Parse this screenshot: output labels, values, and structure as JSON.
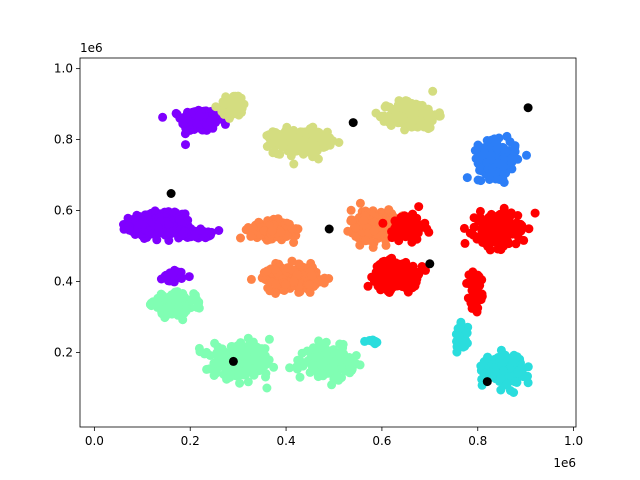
{
  "chart_data": {
    "type": "scatter",
    "title": "",
    "xlabel": "",
    "ylabel": "",
    "x_offset_label": "1e6",
    "y_offset_label": "1e6",
    "xlim": [
      -30000,
      1005000
    ],
    "ylim": [
      -10000,
      1030000
    ],
    "x_ticks": [
      0.0,
      0.2,
      0.4,
      0.6,
      0.8,
      1.0
    ],
    "y_ticks": [
      0.2,
      0.4,
      0.6,
      0.8,
      1.0
    ],
    "grid": false,
    "legend": "none",
    "clusters": [
      {
        "color": "#7f00ff",
        "center": [
          220000,
          855000
        ],
        "spread": [
          35000,
          30000
        ],
        "count": 220
      },
      {
        "color": "#7f00ff",
        "center": [
          130000,
          560000
        ],
        "spread": [
          50000,
          28000
        ],
        "count": 300
      },
      {
        "color": "#7f00ff",
        "center": [
          210000,
          535000
        ],
        "spread": [
          30000,
          12000
        ],
        "count": 60
      },
      {
        "color": "#7f00ff",
        "center": [
          165000,
          415000
        ],
        "spread": [
          20000,
          15000
        ],
        "count": 30
      },
      {
        "color": "#d4dd80",
        "center": [
          430000,
          795000
        ],
        "spread": [
          50000,
          30000
        ],
        "count": 260
      },
      {
        "color": "#d4dd80",
        "center": [
          665000,
          870000
        ],
        "spread": [
          45000,
          35000
        ],
        "count": 220
      },
      {
        "color": "#d4dd80",
        "center": [
          290000,
          895000
        ],
        "spread": [
          25000,
          30000
        ],
        "count": 60
      },
      {
        "color": "#2c7ef7",
        "center": [
          840000,
          745000
        ],
        "spread": [
          35000,
          45000
        ],
        "count": 200
      },
      {
        "color": "#ff8347",
        "center": [
          370000,
          545000
        ],
        "spread": [
          40000,
          22000
        ],
        "count": 180
      },
      {
        "color": "#ff8347",
        "center": [
          410000,
          410000
        ],
        "spread": [
          50000,
          30000
        ],
        "count": 260
      },
      {
        "color": "#ff8347",
        "center": [
          580000,
          560000
        ],
        "spread": [
          40000,
          40000
        ],
        "count": 200
      },
      {
        "color": "#ff0000",
        "center": [
          630000,
          420000
        ],
        "spread": [
          40000,
          35000
        ],
        "count": 240
      },
      {
        "color": "#ff0000",
        "center": [
          655000,
          555000
        ],
        "spread": [
          30000,
          35000
        ],
        "count": 80
      },
      {
        "color": "#ff0000",
        "center": [
          840000,
          545000
        ],
        "spread": [
          40000,
          40000
        ],
        "count": 260
      },
      {
        "color": "#ff0000",
        "center": [
          795000,
          375000
        ],
        "spread": [
          12000,
          45000
        ],
        "count": 60
      },
      {
        "color": "#80feb3",
        "center": [
          165000,
          335000
        ],
        "spread": [
          40000,
          25000
        ],
        "count": 200
      },
      {
        "color": "#80feb3",
        "center": [
          310000,
          175000
        ],
        "spread": [
          55000,
          40000
        ],
        "count": 280
      },
      {
        "color": "#80feb3",
        "center": [
          490000,
          175000
        ],
        "spread": [
          45000,
          35000
        ],
        "count": 200
      },
      {
        "color": "#2adddd",
        "center": [
          855000,
          155000
        ],
        "spread": [
          35000,
          35000
        ],
        "count": 220
      },
      {
        "color": "#2adddd",
        "center": [
          765000,
          245000
        ],
        "spread": [
          12000,
          30000
        ],
        "count": 40
      },
      {
        "color": "#2adddd",
        "center": [
          580000,
          230000
        ],
        "spread": [
          12000,
          10000
        ],
        "count": 10
      }
    ],
    "centroids": {
      "color": "#000000",
      "x": [
        160000,
        540000,
        490000,
        700000,
        905000,
        290000,
        820000
      ],
      "y": [
        648000,
        848000,
        548000,
        450000,
        890000,
        175000,
        118000
      ]
    }
  }
}
